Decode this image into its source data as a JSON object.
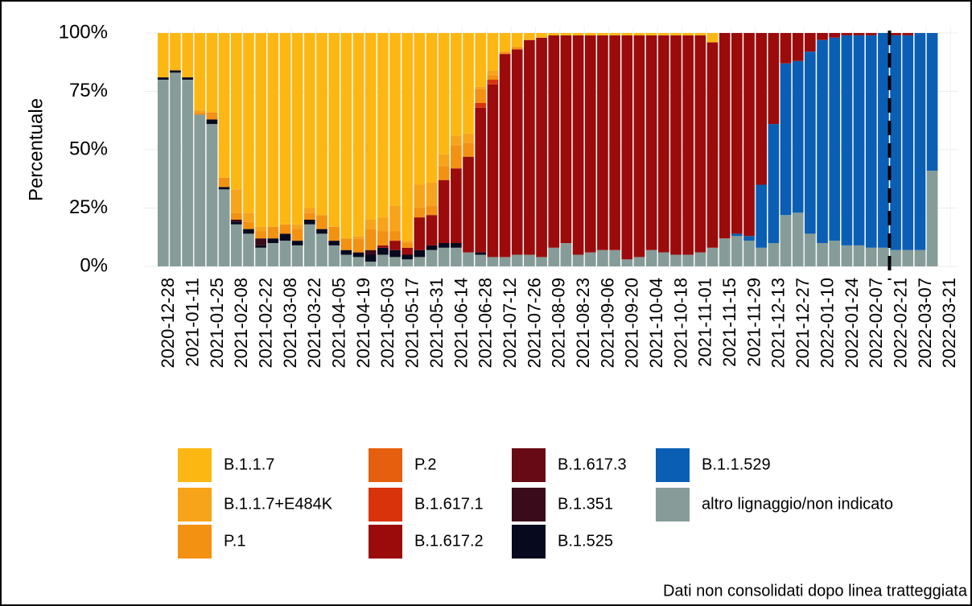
{
  "chart_data": {
    "type": "stacked-bar",
    "y_label": "Percentuale",
    "annotation": "Dati non consolidati dopo linea tratteggiata",
    "dashed_line_x": "2022-02-14",
    "x": [
      "2020-12-21",
      "2020-12-28",
      "2021-01-04",
      "2021-01-11",
      "2021-01-18",
      "2021-01-25",
      "2021-02-01",
      "2021-02-08",
      "2021-02-15",
      "2021-02-22",
      "2021-03-01",
      "2021-03-08",
      "2021-03-15",
      "2021-03-22",
      "2021-03-29",
      "2021-04-05",
      "2021-04-12",
      "2021-04-19",
      "2021-04-26",
      "2021-05-03",
      "2021-05-10",
      "2021-05-17",
      "2021-05-24",
      "2021-05-31",
      "2021-06-07",
      "2021-06-14",
      "2021-06-21",
      "2021-06-28",
      "2021-07-05",
      "2021-07-12",
      "2021-07-19",
      "2021-07-26",
      "2021-08-02",
      "2021-08-09",
      "2021-08-16",
      "2021-08-23",
      "2021-08-30",
      "2021-09-06",
      "2021-09-13",
      "2021-09-20",
      "2021-09-27",
      "2021-10-04",
      "2021-10-11",
      "2021-10-18",
      "2021-10-25",
      "2021-11-01",
      "2021-11-08",
      "2021-11-15",
      "2021-11-22",
      "2021-11-29",
      "2021-12-06",
      "2021-12-13",
      "2021-12-20",
      "2021-12-27",
      "2022-01-03",
      "2022-01-10",
      "2022-01-17",
      "2022-01-24",
      "2022-01-31",
      "2022-02-07",
      "2022-02-14",
      "2022-02-21",
      "2022-02-28",
      "2022-03-07"
    ],
    "xlim": [
      "2020-12-14",
      "2022-03-25"
    ],
    "xticks": [
      "2020-12-28",
      "2021-01-11",
      "2021-01-25",
      "2021-02-08",
      "2021-02-22",
      "2021-03-08",
      "2021-03-22",
      "2021-04-05",
      "2021-04-19",
      "2021-05-03",
      "2021-05-17",
      "2021-05-31",
      "2021-06-14",
      "2021-06-28",
      "2021-07-12",
      "2021-07-26",
      "2021-08-09",
      "2021-08-23",
      "2021-09-06",
      "2021-09-20",
      "2021-10-04",
      "2021-10-18",
      "2021-11-01",
      "2021-11-15",
      "2021-11-29",
      "2021-12-13",
      "2021-12-27",
      "2022-01-10",
      "2022-01-24",
      "2022-02-07",
      "2022-02-21",
      "2022-03-07",
      "2022-03-21"
    ],
    "ylim": [
      0,
      100
    ],
    "yticks": [
      {
        "value": 0,
        "label": "0%"
      },
      {
        "value": 25,
        "label": "25%"
      },
      {
        "value": 50,
        "label": "50%"
      },
      {
        "value": 75,
        "label": "75%"
      },
      {
        "value": 100,
        "label": "100%"
      }
    ],
    "grid": true,
    "series": [
      {
        "name": "B.1.1.7",
        "color": "#fdb713",
        "values": [
          19,
          16,
          19,
          33,
          34,
          62,
          67,
          77,
          83,
          83,
          82,
          82,
          75,
          78,
          83,
          88,
          87,
          80,
          79,
          74,
          89,
          65,
          64,
          52,
          44,
          43,
          23,
          16,
          8,
          6,
          3,
          2,
          1,
          1,
          1,
          1,
          1,
          1,
          1,
          1,
          1,
          1,
          1,
          1,
          1,
          4,
          0,
          0,
          0,
          0,
          0,
          0,
          0,
          0,
          0,
          0,
          0,
          0,
          0,
          0,
          0,
          0,
          0,
          0
        ]
      },
      {
        "name": "B.1.1.7+E484K",
        "color": "#f7a41b",
        "values": [
          0,
          0,
          0,
          1,
          0,
          0,
          10,
          4,
          2,
          0,
          0,
          2,
          2,
          0,
          0,
          0,
          1,
          4,
          6,
          11,
          1,
          10,
          10,
          5,
          4,
          4,
          1,
          2,
          0,
          0,
          0,
          0,
          0,
          0,
          0,
          0,
          0,
          0,
          0,
          0,
          0,
          0,
          0,
          0,
          0,
          0,
          0,
          0,
          0,
          0,
          0,
          0,
          0,
          0,
          0,
          0,
          0,
          0,
          0,
          0,
          0,
          0,
          0,
          0
        ]
      },
      {
        "name": "P.1",
        "color": "#f39112",
        "values": [
          0,
          0,
          0,
          1,
          3,
          4,
          3,
          3,
          3,
          5,
          4,
          5,
          3,
          6,
          6,
          5,
          6,
          9,
          6,
          4,
          2,
          4,
          4,
          6,
          10,
          6,
          6,
          2,
          1,
          1,
          0,
          0,
          0,
          0,
          0,
          0,
          0,
          0,
          0,
          0,
          0,
          0,
          0,
          0,
          0,
          0,
          0,
          0,
          0,
          0,
          0,
          0,
          0,
          0,
          0,
          0,
          0,
          0,
          0,
          0,
          0,
          0,
          0,
          0
        ]
      },
      {
        "name": "P.2",
        "color": "#e65f0e",
        "values": [
          0,
          0,
          0,
          0,
          0,
          0,
          0,
          0,
          0,
          0,
          0,
          0,
          0,
          0,
          0,
          0,
          0,
          0,
          0,
          0,
          0,
          0,
          0,
          0,
          0,
          0,
          0,
          0,
          0,
          0,
          0,
          0,
          0,
          0,
          0,
          0,
          0,
          0,
          0,
          0,
          0,
          0,
          0,
          0,
          0,
          0,
          0,
          0,
          0,
          0,
          0,
          0,
          0,
          0,
          0,
          0,
          0,
          0,
          0,
          0,
          0,
          0,
          0,
          0
        ]
      },
      {
        "name": "B.1.617.1",
        "color": "#d9330c",
        "values": [
          0,
          0,
          0,
          0,
          0,
          0,
          0,
          0,
          0,
          0,
          0,
          0,
          0,
          0,
          0,
          0,
          0,
          0,
          0,
          0,
          0,
          0,
          0,
          0,
          0,
          0,
          2,
          2,
          0,
          0,
          0,
          0,
          0,
          0,
          0,
          0,
          0,
          0,
          0,
          0,
          0,
          0,
          0,
          0,
          0,
          0,
          0,
          0,
          0,
          0,
          0,
          0,
          0,
          0,
          0,
          0,
          0,
          0,
          0,
          0,
          0,
          0,
          0,
          0
        ]
      },
      {
        "name": "B.1.617.2",
        "color": "#9b0b0b",
        "values": [
          0,
          0,
          0,
          0,
          0,
          0,
          0,
          0,
          0,
          0,
          0,
          0,
          0,
          0,
          0,
          0,
          0,
          0,
          1,
          4,
          3,
          14,
          13,
          27,
          32,
          41,
          62,
          74,
          87,
          88,
          92,
          94,
          91,
          89,
          94,
          93,
          92,
          92,
          96,
          95,
          92,
          93,
          94,
          94,
          93,
          88,
          88,
          86,
          87,
          65,
          39,
          13,
          12,
          8,
          3,
          2,
          1,
          1,
          1,
          0,
          1,
          1,
          0,
          0
        ]
      },
      {
        "name": "B.1.617.3",
        "color": "#670a13",
        "values": [
          0,
          0,
          0,
          0,
          0,
          0,
          0,
          0,
          0,
          0,
          0,
          0,
          0,
          0,
          0,
          0,
          0,
          0,
          0,
          0,
          0,
          0,
          0,
          0,
          0,
          0,
          0,
          0,
          0,
          0,
          0,
          0,
          0,
          0,
          0,
          0,
          0,
          0,
          0,
          0,
          0,
          0,
          0,
          0,
          0,
          0,
          0,
          0,
          0,
          0,
          0,
          0,
          0,
          0,
          0,
          0,
          0,
          0,
          0,
          0,
          0,
          0,
          0,
          0
        ]
      },
      {
        "name": "B.1.351",
        "color": "#3a0b1a",
        "values": [
          0,
          0,
          0,
          0,
          0,
          0,
          1,
          0,
          3,
          0,
          0,
          0,
          0,
          0,
          0,
          0,
          0,
          2,
          0,
          0,
          0,
          0,
          0,
          0,
          0,
          0,
          0,
          0,
          0,
          0,
          0,
          0,
          0,
          0,
          0,
          0,
          0,
          0,
          0,
          0,
          0,
          0,
          0,
          0,
          0,
          0,
          0,
          0,
          0,
          0,
          0,
          0,
          0,
          0,
          0,
          0,
          0,
          0,
          0,
          0,
          0,
          0,
          0,
          0
        ]
      },
      {
        "name": "B.1.525",
        "color": "#070a1e",
        "values": [
          1,
          1,
          1,
          0,
          2,
          1,
          1,
          2,
          1,
          2,
          3,
          2,
          2,
          2,
          2,
          2,
          2,
          3,
          3,
          3,
          2,
          3,
          2,
          2,
          2,
          0,
          1,
          0,
          0,
          0,
          0,
          0,
          0,
          0,
          0,
          0,
          0,
          0,
          0,
          0,
          0,
          0,
          0,
          0,
          0,
          0,
          0,
          0,
          0,
          0,
          0,
          0,
          0,
          0,
          0,
          0,
          0,
          0,
          0,
          0,
          0,
          0,
          0,
          0
        ]
      },
      {
        "name": "B.1.1.529",
        "color": "#0a5fb4",
        "values": [
          0,
          0,
          0,
          0,
          0,
          0,
          0,
          0,
          0,
          0,
          0,
          0,
          0,
          0,
          0,
          0,
          0,
          0,
          0,
          0,
          0,
          0,
          0,
          0,
          0,
          0,
          0,
          0,
          0,
          0,
          0,
          0,
          0,
          0,
          0,
          0,
          0,
          0,
          0,
          0,
          0,
          0,
          0,
          0,
          0,
          0,
          0,
          1,
          2,
          27,
          51,
          65,
          65,
          78,
          87,
          87,
          90,
          90,
          91,
          92,
          92,
          92,
          93,
          59
        ]
      },
      {
        "name": "altro lignaggio/non indicato",
        "color": "#869c98",
        "values": [
          80,
          83,
          80,
          65,
          61,
          33,
          18,
          14,
          8,
          10,
          11,
          9,
          18,
          14,
          9,
          5,
          4,
          2,
          5,
          4,
          3,
          4,
          7,
          8,
          8,
          6,
          5,
          4,
          4,
          5,
          5,
          4,
          8,
          10,
          5,
          6,
          7,
          7,
          3,
          4,
          7,
          6,
          5,
          5,
          6,
          8,
          12,
          13,
          11,
          8,
          10,
          22,
          23,
          14,
          10,
          11,
          9,
          9,
          8,
          8,
          7,
          7,
          7,
          41
        ]
      }
    ]
  }
}
